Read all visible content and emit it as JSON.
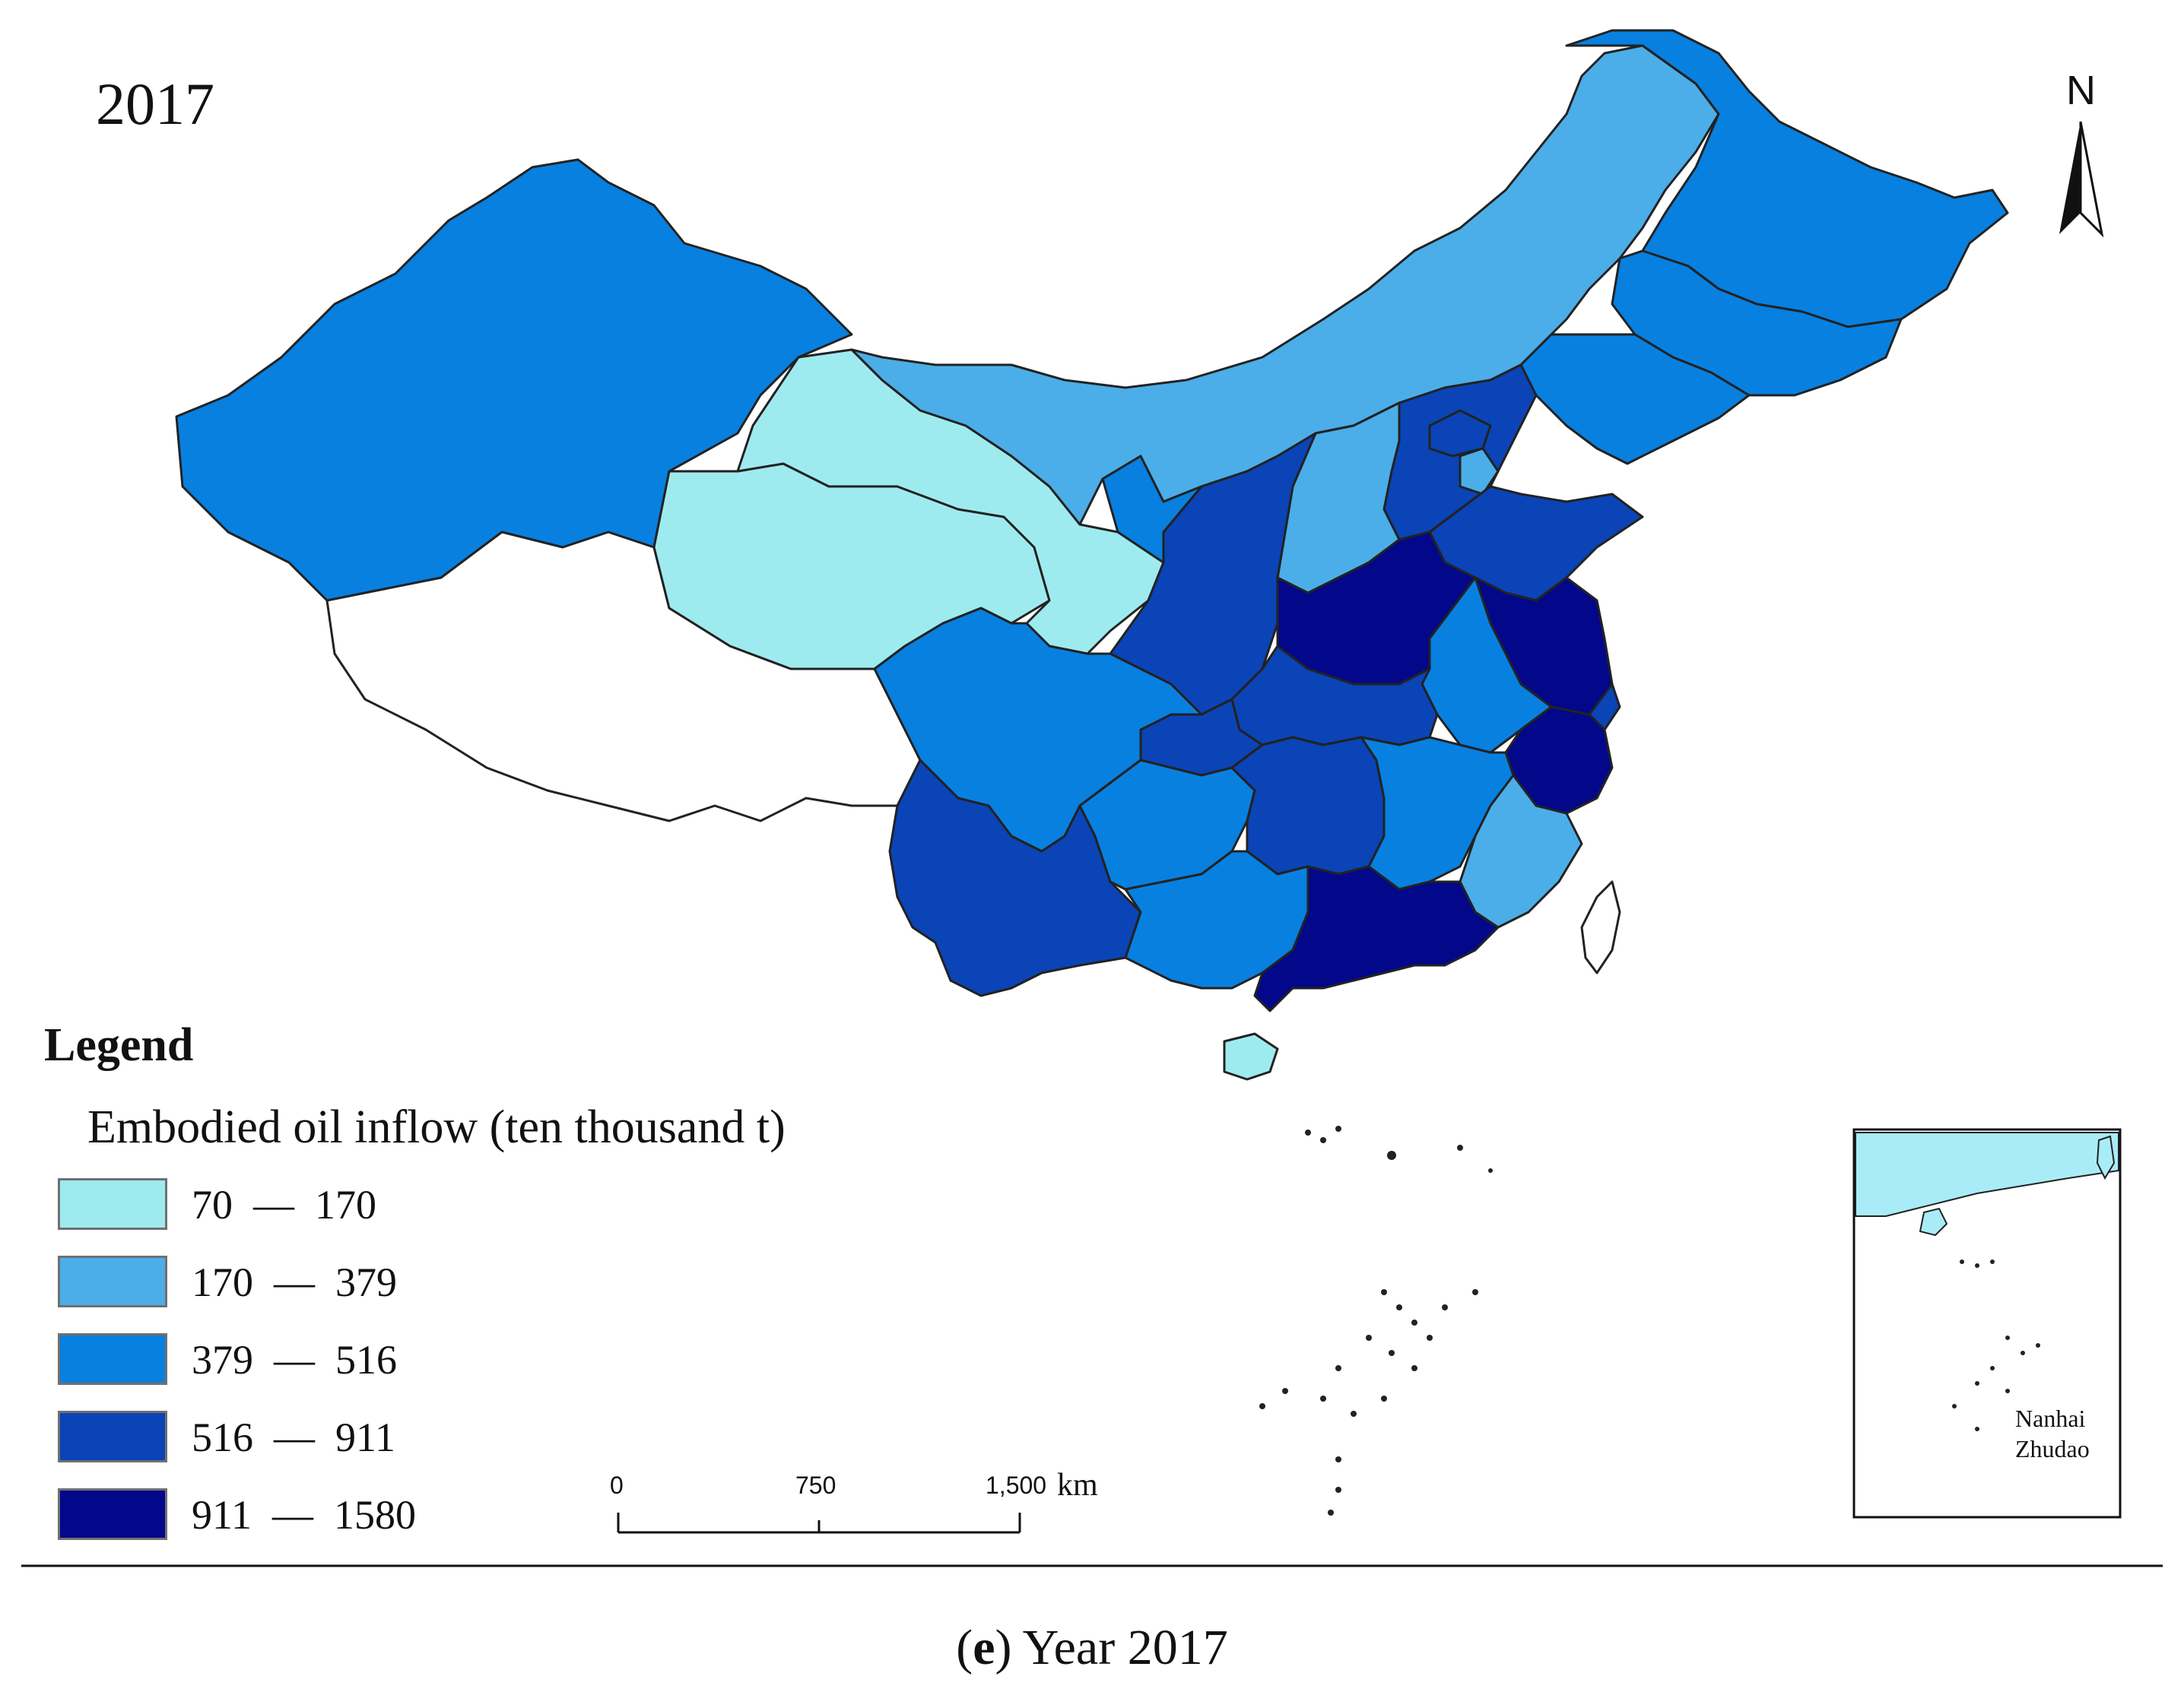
{
  "map": {
    "year_label": "2017",
    "north_label": "N",
    "caption_letter": "e",
    "caption_text": " Year 2017"
  },
  "legend": {
    "heading": "Legend",
    "subtitle": "Embodied oil inflow (ten thousand t)",
    "classes": [
      {
        "range": "70  —  170",
        "color": "#9eebef"
      },
      {
        "range": "170  —  379",
        "color": "#4baee8"
      },
      {
        "range": "379  —  516",
        "color": "#0880e0"
      },
      {
        "range": "516  —  911",
        "color": "#0a44b6"
      },
      {
        "range": "911  —  1580",
        "color": "#03078a"
      }
    ]
  },
  "scale_bar": {
    "ticks": [
      "0",
      "750",
      "1,500"
    ],
    "unit": "km"
  },
  "inset": {
    "label_line1": "Nanhai",
    "label_line2": "Zhudao"
  }
}
